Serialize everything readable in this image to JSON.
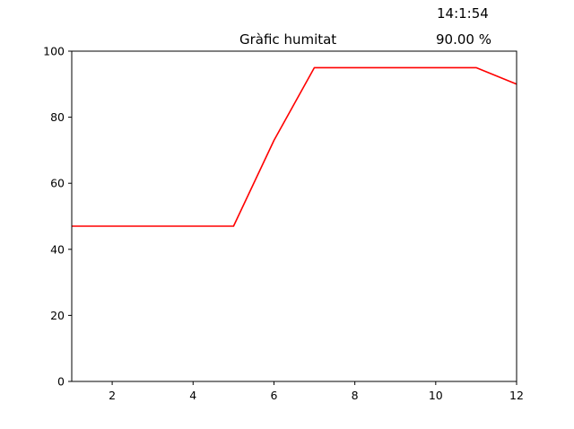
{
  "readouts": {
    "time": "14:1:54",
    "current_value": "90.00 %"
  },
  "chart_data": {
    "type": "line",
    "title": "Gràfic humitat",
    "xlabel": "",
    "ylabel": "",
    "xlim": [
      1,
      12
    ],
    "ylim": [
      0,
      100
    ],
    "x_ticks": [
      2,
      4,
      6,
      8,
      10,
      12
    ],
    "y_ticks": [
      0,
      20,
      40,
      60,
      80,
      100
    ],
    "grid": false,
    "series": [
      {
        "color": "#ff0000",
        "x": [
          1,
          2,
          3,
          4,
          5,
          6,
          7,
          8,
          9,
          10,
          11,
          12
        ],
        "y": [
          47,
          47,
          47,
          47,
          47,
          73,
          95,
          95,
          95,
          95,
          95,
          90
        ]
      }
    ]
  }
}
